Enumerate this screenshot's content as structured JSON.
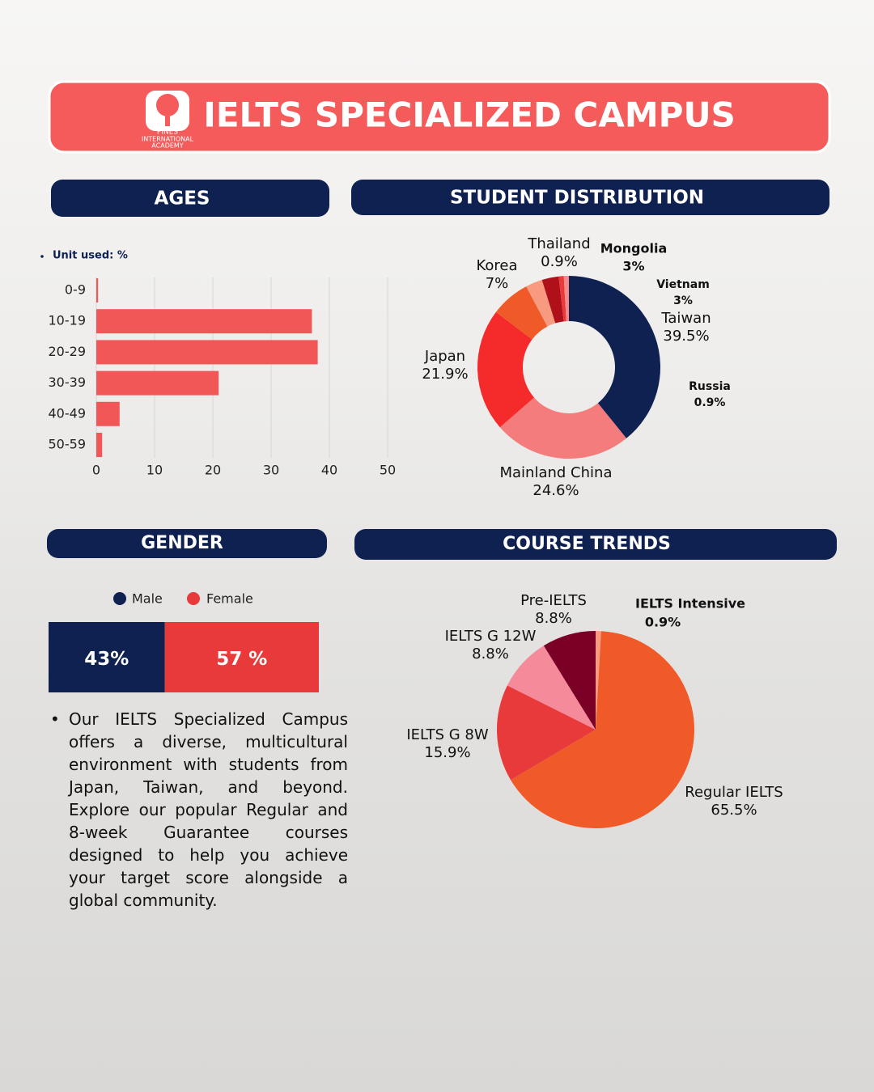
{
  "header": {
    "title": "IELTS SPECIALIZED CAMPUS",
    "logo": [
      "PINES",
      "INTERNATIONAL",
      "ACADEMY"
    ]
  },
  "chart_data": [
    {
      "type": "hbar",
      "title": "AGES",
      "note": "Unit used: %",
      "categories": [
        "0-9",
        "10-19",
        "20-29",
        "30-39",
        "40-49",
        "50-59"
      ],
      "values": [
        0.3,
        37,
        38,
        21,
        4,
        1
      ],
      "color": "#f25757",
      "xlim": [
        0,
        50
      ],
      "xticks": [
        0,
        10,
        20,
        30,
        40,
        50
      ],
      "grid": true
    },
    {
      "type": "donut",
      "title": "STUDENT DISTRIBUTION",
      "categories": [
        "Taiwan",
        "Mainland China",
        "Japan",
        "Korea",
        "Mongolia",
        "Vietnam",
        "Thailand",
        "Russia"
      ],
      "values": [
        39.5,
        24.6,
        21.9,
        7,
        3,
        3,
        0.9,
        0.9
      ],
      "value_labels": [
        "39.5%",
        "24.6%",
        "21.9%",
        "7%",
        "3%",
        "3%",
        "0.9%",
        "0.9%"
      ],
      "colors": [
        "#0e2150",
        "#f47c7c",
        "#f52a2a",
        "#f05a28",
        "#f79a80",
        "#b0101a",
        "#e83a3a",
        "#f58a8a"
      ]
    },
    {
      "type": "stacked_bar",
      "title": "GENDER",
      "series": [
        {
          "name": "Male",
          "color": "#0e2150",
          "values": [
            43
          ],
          "value_labels": [
            "43%"
          ]
        },
        {
          "name": "Female",
          "color": "#e83a3a",
          "values": [
            57
          ],
          "value_labels": [
            "57 %"
          ]
        }
      ]
    },
    {
      "type": "pie",
      "title": "COURSE TRENDS",
      "categories": [
        "IELTS Intensive",
        "Regular IELTS",
        "IELTS G 8W",
        "IELTS G 12W",
        "Pre-IELTS"
      ],
      "values": [
        0.9,
        65.5,
        15.9,
        8.8,
        8.8
      ],
      "value_labels": [
        "0.9%",
        "65.5%",
        "15.9%",
        "8.8%",
        "8.8%"
      ],
      "colors": [
        "#f79a80",
        "#f05a28",
        "#e83a3a",
        "#f58a9a",
        "#7a0025"
      ]
    }
  ],
  "description": "Our IELTS Specialized Campus offers a diverse, multicultural environment with students from Japan, Taiwan, and beyond. Explore our popular Regular and 8-week Guarantee courses designed to help you achieve your target score alongside a global community."
}
